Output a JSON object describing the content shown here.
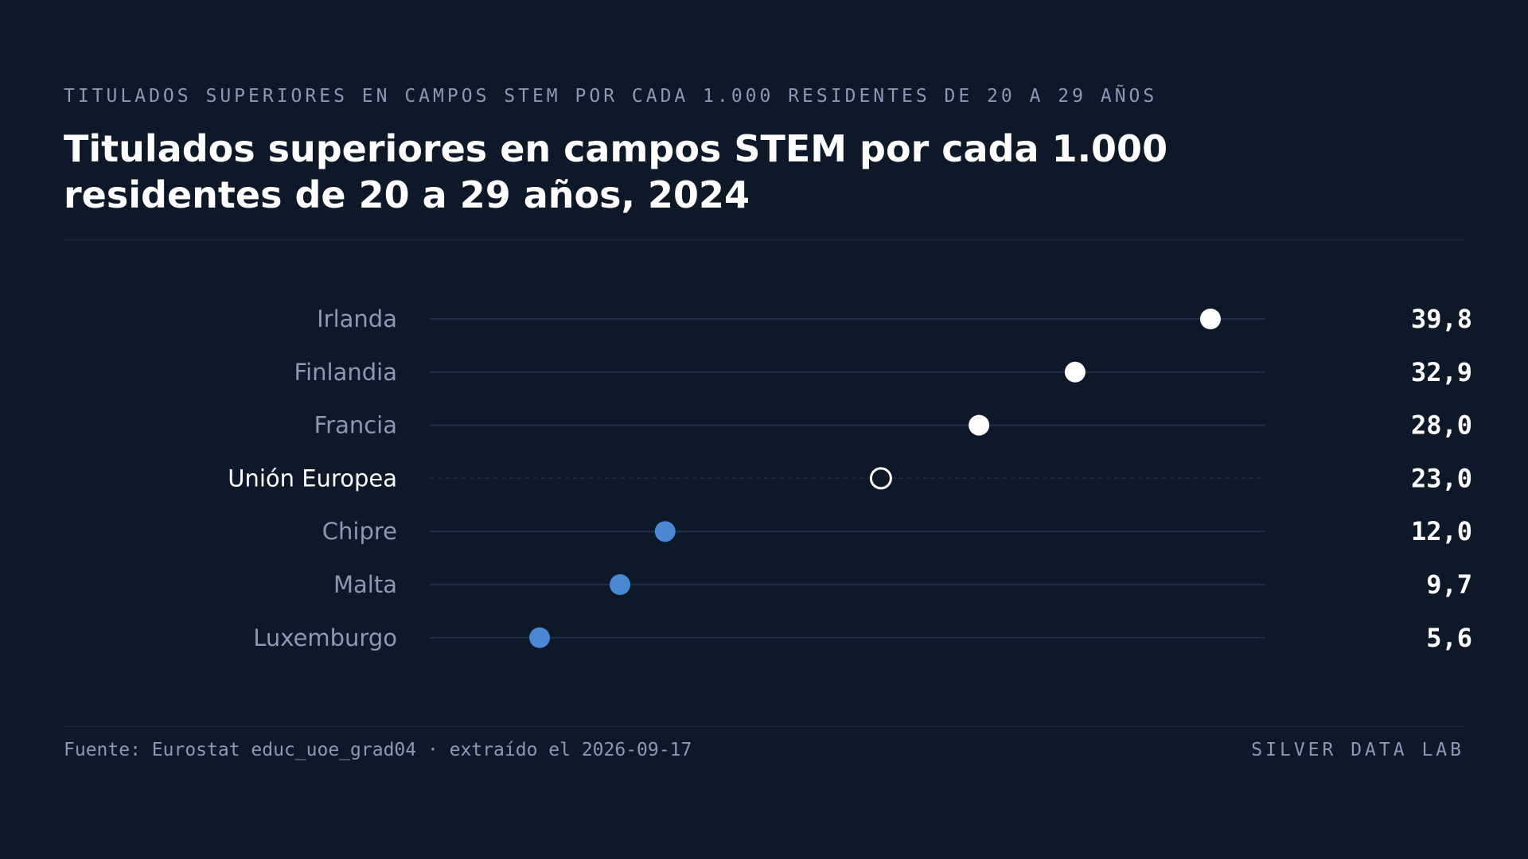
{
  "header": {
    "kicker": "TITULADOS SUPERIORES EN CAMPOS STEM POR CADA 1.000 RESIDENTES DE 20 A 29 AÑOS",
    "title": "Titulados superiores en campos STEM por cada 1.000 residentes de 20 a 29 años, 2024"
  },
  "footer": {
    "source": "Fuente: Eurostat educ_uoe_grad04 · extraído el 2026-09-17",
    "brand": "SILVER DATA LAB"
  },
  "colors": {
    "background": "#0d1829",
    "track": "#1e3048",
    "high": "#ffffff",
    "reference": "#ffffff",
    "low": "#4a88d4",
    "label": "#8a9ab4",
    "value": "#ffffff"
  },
  "chart_data": {
    "type": "scatter",
    "title": "Titulados superiores en campos STEM por cada 1.000 residentes de 20 a 29 años, 2024",
    "xlim": [
      0,
      42.6
    ],
    "grid": false,
    "categories": [
      "Irlanda",
      "Finlandia",
      "Francia",
      "Unión Europea",
      "Chipre",
      "Malta",
      "Luxemburgo"
    ],
    "values": [
      39.8,
      32.9,
      28.0,
      23.0,
      12.0,
      9.7,
      5.6
    ],
    "value_labels": [
      "39,8",
      "32,9",
      "28,0",
      "23,0",
      "12,0",
      "9,7",
      "5,6"
    ],
    "groups": [
      "high",
      "high",
      "high",
      "reference",
      "low",
      "low",
      "low"
    ]
  }
}
